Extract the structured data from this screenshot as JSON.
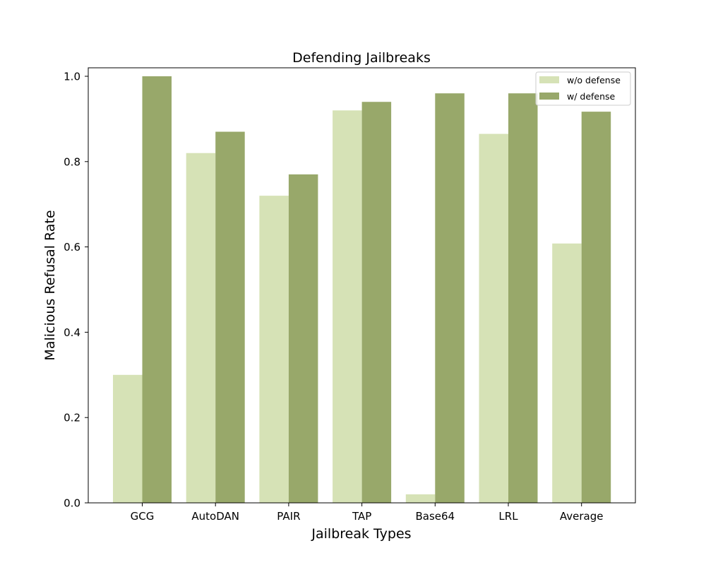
{
  "chart_data": {
    "type": "bar",
    "title": "Defending Jailbreaks",
    "xlabel": "Jailbreak Types",
    "ylabel": "Malicious Refusal Rate",
    "categories": [
      "GCG",
      "AutoDAN",
      "PAIR",
      "TAP",
      "Base64",
      "LRL",
      "Average"
    ],
    "series": [
      {
        "name": "w/o defense",
        "color": "#d6e2b6",
        "values": [
          0.3,
          0.82,
          0.72,
          0.92,
          0.02,
          0.865,
          0.608
        ]
      },
      {
        "name": "w/ defense",
        "color": "#98a86a",
        "values": [
          1.0,
          0.87,
          0.77,
          0.94,
          0.96,
          0.96,
          0.917
        ]
      }
    ],
    "ylim": [
      0,
      1.02
    ],
    "yticks": [
      0.0,
      0.2,
      0.4,
      0.6,
      0.8,
      1.0
    ],
    "ytick_labels": [
      "0.0",
      "0.2",
      "0.4",
      "0.6",
      "0.8",
      "1.0"
    ],
    "grid": false,
    "legend_position": "top-right"
  }
}
